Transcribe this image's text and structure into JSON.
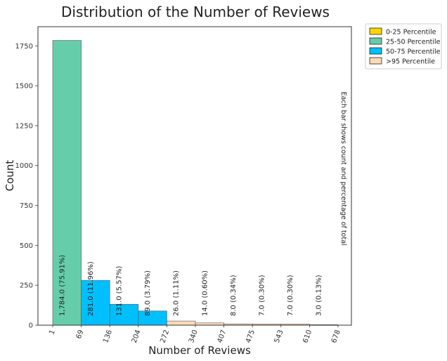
{
  "chart_data": {
    "type": "bar",
    "title": "Distribution of the Number of Reviews",
    "xlabel": "Number of Reviews",
    "ylabel": "Count",
    "ylim": [
      0,
      1870
    ],
    "y_ticks": [
      0,
      250,
      500,
      750,
      1000,
      1250,
      1500,
      1750
    ],
    "x_tick_labels": [
      "1",
      "69",
      "136",
      "204",
      "272",
      "340",
      "407",
      "475",
      "543",
      "610",
      "678"
    ],
    "bins": [
      {
        "count": 1784,
        "label": "1,784.0  (75.91%)",
        "group": "25-50 Percentile"
      },
      {
        "count": 281,
        "label": "281.0  (11.96%)",
        "group": "50-75 Percentile"
      },
      {
        "count": 131,
        "label": "131.0  (5.57%)",
        "group": "50-75 Percentile"
      },
      {
        "count": 89,
        "label": "89.0  (3.79%)",
        "group": "50-75 Percentile"
      },
      {
        "count": 26,
        "label": "26.0  (1.11%)",
        "group": ">95 Percentile"
      },
      {
        "count": 14,
        "label": "14.0  (0.60%)",
        "group": ">95 Percentile"
      },
      {
        "count": 8,
        "label": "8.0  (0.34%)",
        "group": ">95 Percentile"
      },
      {
        "count": 7,
        "label": "7.0  (0.30%)",
        "group": ">95 Percentile"
      },
      {
        "count": 7,
        "label": "7.0  (0.30%)",
        "group": ">95 Percentile"
      },
      {
        "count": 3,
        "label": "3.0  (0.13%)",
        "group": ">95 Percentile"
      }
    ],
    "legend": {
      "placement": "top-right, outside plot",
      "entries": [
        {
          "name": "0-25 Percentile",
          "color": "#ffd700"
        },
        {
          "name": "25-50 Percentile",
          "color": "#66cdaa"
        },
        {
          "name": "50-75 Percentile",
          "color": "#00bfff"
        },
        {
          "name": ">95 Percentile",
          "color": "#ffdab9"
        }
      ]
    },
    "annotation": "Each bar shows count and percentage of total",
    "grid": false
  }
}
